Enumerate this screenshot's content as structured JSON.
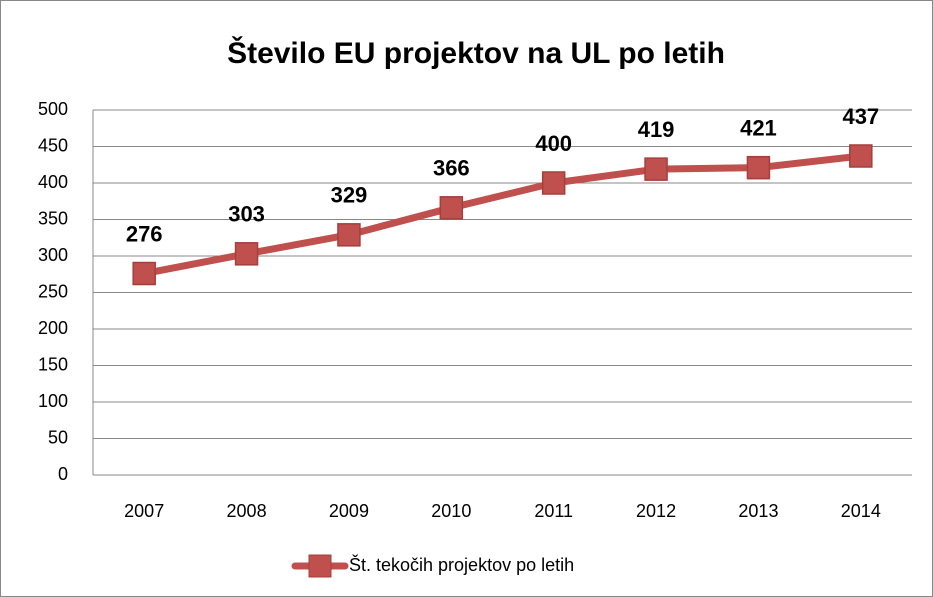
{
  "chart_data": {
    "type": "line",
    "title": "Število EU projektov na UL po letih",
    "categories": [
      "2007",
      "2008",
      "2009",
      "2010",
      "2011",
      "2012",
      "2013",
      "2014"
    ],
    "series": [
      {
        "name": "Št. tekočih projektov po letih",
        "color": "#c0504d",
        "values": [
          276,
          303,
          329,
          366,
          400,
          419,
          421,
          437
        ]
      }
    ],
    "ylim": [
      0,
      500
    ],
    "yticks": [
      0,
      50,
      100,
      150,
      200,
      250,
      300,
      350,
      400,
      450,
      500
    ],
    "grid": true,
    "legend": "bottom"
  }
}
